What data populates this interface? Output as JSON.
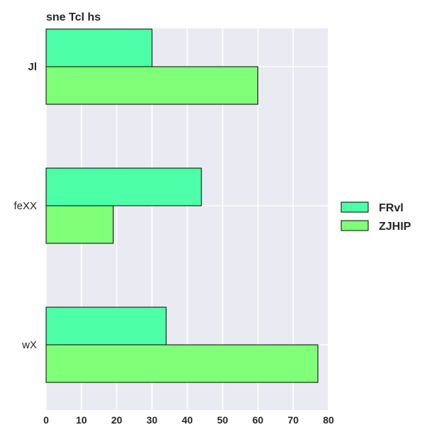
{
  "chart_data": {
    "type": "bar",
    "orientation": "horizontal",
    "title": "sne Tcl hs",
    "xlabel": "",
    "ylabel": "",
    "categories": [
      "Jl",
      "feXX",
      "wX"
    ],
    "series": [
      {
        "name": "FRvl",
        "values": [
          30,
          44,
          34
        ],
        "color": "#4dffa6"
      },
      {
        "name": "ZJHIP",
        "values": [
          60,
          19,
          77
        ],
        "color": "#80ff78"
      }
    ],
    "xlim": [
      0,
      80
    ],
    "xticks": [
      0,
      10,
      20,
      30,
      40,
      50,
      60,
      70,
      80
    ],
    "grid": true,
    "legend_position": "right",
    "background_color": "#eaeaf2",
    "grid_color": "#ffffff"
  }
}
